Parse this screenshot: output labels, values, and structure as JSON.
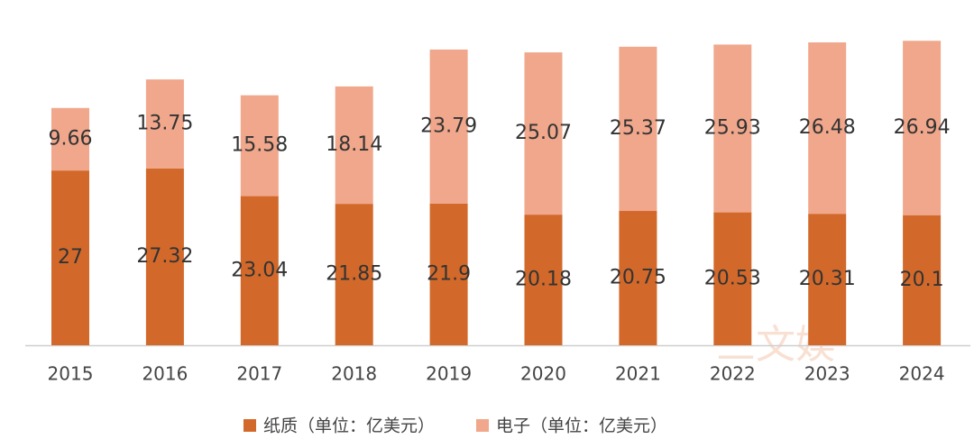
{
  "chart_data": {
    "type": "stacked-bar",
    "categories": [
      "2015",
      "2016",
      "2017",
      "2018",
      "2019",
      "2020",
      "2021",
      "2022",
      "2023",
      "2024"
    ],
    "series": [
      {
        "name": "纸质（单位：亿美元）",
        "color": "#d2692a",
        "values": [
          27,
          27.32,
          23.04,
          21.85,
          21.9,
          20.18,
          20.75,
          20.53,
          20.31,
          20.1
        ]
      },
      {
        "name": "电子（单位：亿美元）",
        "color": "#f0a78b",
        "values": [
          9.66,
          13.75,
          15.58,
          18.14,
          23.79,
          25.07,
          25.37,
          25.93,
          26.48,
          26.94
        ]
      }
    ],
    "ylim": [
      0,
      50
    ],
    "watermark": "三文娱"
  }
}
